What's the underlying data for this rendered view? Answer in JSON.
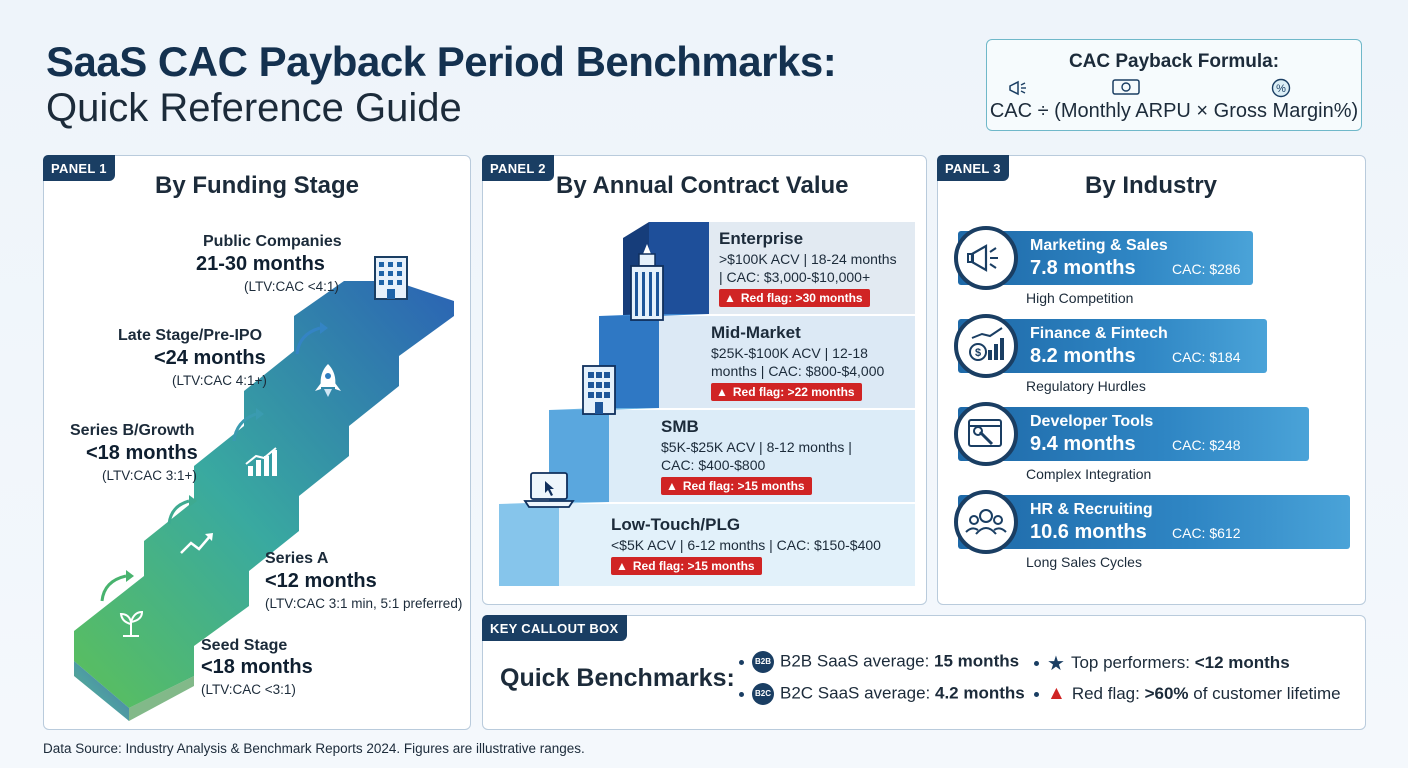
{
  "title": {
    "line1": "SaaS CAC Payback Period Benchmarks:",
    "line2": "Quick Reference Guide"
  },
  "formula": {
    "title": "CAC Payback Formula:",
    "text": "CAC ÷ (Monthly ARPU × Gross Margin%)",
    "icons": [
      "megaphone-icon",
      "money-icon",
      "percent-icon"
    ]
  },
  "panel1": {
    "tag": "PANEL 1",
    "title": "By Funding Stage",
    "stages": [
      {
        "label": "Seed Stage",
        "months": "<18 months",
        "ltv": "(LTV:CAC <3:1)",
        "icon": "sprout-icon"
      },
      {
        "label": "Series A",
        "months": "<12 months",
        "ltv": "(LTV:CAC 3:1 min, 5:1 preferred)",
        "icon": "trend-arrow-icon"
      },
      {
        "label": "Series B/Growth",
        "months": "<18 months",
        "ltv": "(LTV:CAC 3:1+)",
        "icon": "bar-chart-icon"
      },
      {
        "label": "Late Stage/Pre-IPO",
        "months": "<24 months",
        "ltv": "(LTV:CAC 4:1+)",
        "icon": "rocket-icon"
      },
      {
        "label": "Public Companies",
        "months": "21-30 months",
        "ltv": "(LTV:CAC <4:1)",
        "icon": "office-building-icon"
      }
    ]
  },
  "panel2": {
    "tag": "PANEL 2",
    "title": "By Annual Contract Value",
    "tiers": [
      {
        "name": "Enterprise",
        "desc1": ">$100K ACV | 18-24 months",
        "desc2": "| CAC: $3,000-$10,000+",
        "flag": "Red flag: >30 months",
        "icon": "skyscraper-icon"
      },
      {
        "name": "Mid-Market",
        "desc1": "$25K-$100K ACV | 12-18",
        "desc2": "months | CAC: $800-$4,000",
        "flag": "Red flag: >22 months",
        "icon": "building-icon"
      },
      {
        "name": "SMB",
        "desc1": "$5K-$25K ACV | 8-12 months |",
        "desc2": "CAC: $400-$800",
        "flag": "Red flag: >15 months",
        "icon": "none"
      },
      {
        "name": "Low-Touch/PLG",
        "desc1": "<$5K ACV | 6-12 months | CAC: $150-$400",
        "desc2": "",
        "flag": "Red flag: >15 months",
        "icon": "laptop-icon"
      }
    ]
  },
  "panel3": {
    "tag": "PANEL 3",
    "title": "By Industry",
    "industries": [
      {
        "name": "Marketing & Sales",
        "months": "7.8 months",
        "cac": "CAC: $286",
        "sub": "High Competition",
        "icon": "megaphone-icon"
      },
      {
        "name": "Finance & Fintech",
        "months": "8.2 months",
        "cac": "CAC: $184",
        "sub": "Regulatory Hurdles",
        "icon": "finance-chart-icon"
      },
      {
        "name": "Developer Tools",
        "months": "9.4 months",
        "cac": "CAC: $248",
        "sub": "Complex Integration",
        "icon": "wrench-window-icon"
      },
      {
        "name": "HR & Recruiting",
        "months": "10.6 months",
        "cac": "CAC: $612",
        "sub": "Long Sales Cycles",
        "icon": "people-icon"
      }
    ]
  },
  "callout": {
    "tag": "KEY CALLOUT BOX",
    "title": "Quick Benchmarks:",
    "b2b_badge": "B2B",
    "b2c_badge": "B2C",
    "b2b_text": "B2B SaaS average: ",
    "b2b_value": "15 months",
    "b2c_text": "B2C SaaS average: ",
    "b2c_value": "4.2 months",
    "top_text": "Top performers: ",
    "top_value": "<12 months",
    "red_text": "Red flag: ",
    "red_value": ">60%",
    "red_suffix": " of customer lifetime"
  },
  "footer": "Data Source: Industry Analysis & Benchmark Reports 2024. Figures are illustrative ranges.",
  "colors": {
    "navy": "#1a3e63",
    "red_flag": "#d02424",
    "stair_green": "#4cb560",
    "stair_blue": "#2f6fb5"
  }
}
